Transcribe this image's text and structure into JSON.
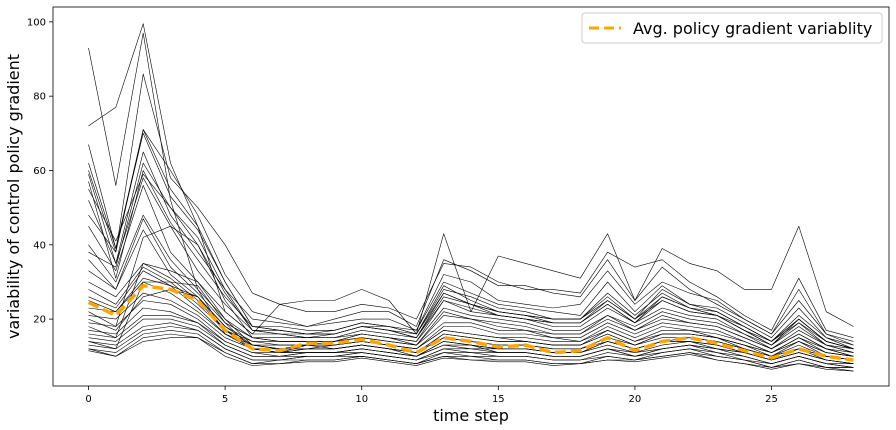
{
  "chart_data": {
    "type": "line",
    "xlabel": "time step",
    "ylabel": "variability of control policy gradient",
    "xlim": [
      -1.3,
      29.3
    ],
    "ylim": [
      2,
      104
    ],
    "x_ticks": [
      0,
      5,
      10,
      15,
      20,
      25
    ],
    "y_ticks": [
      20,
      40,
      60,
      80,
      100
    ],
    "grid": false,
    "legend_position": "top-right",
    "colors": {
      "individual": "#000000",
      "average": "#ffa500"
    },
    "x": [
      0,
      1,
      2,
      3,
      4,
      5,
      6,
      7,
      8,
      9,
      10,
      11,
      12,
      13,
      14,
      15,
      16,
      17,
      18,
      19,
      20,
      21,
      22,
      23,
      24,
      25,
      26,
      27,
      28
    ],
    "series": [
      {
        "name": "Avg. policy gradient variablity",
        "color": "#ffa500",
        "style": "dashed",
        "values": [
          24.5,
          21,
          29,
          28,
          25,
          17,
          12,
          11.5,
          13.5,
          13.5,
          14.5,
          13,
          11,
          15,
          14,
          12.5,
          13,
          11,
          11.5,
          15,
          11.5,
          14,
          15,
          13.5,
          11.5,
          9.5,
          12,
          10,
          9
        ]
      },
      {
        "values": [
          93,
          56,
          97,
          52,
          28,
          16,
          12,
          11,
          13,
          12,
          13,
          12,
          10,
          13,
          13,
          11,
          11,
          10,
          10,
          12,
          10,
          12,
          13,
          12,
          11,
          9,
          11,
          9,
          8
        ]
      },
      {
        "values": [
          72,
          77,
          99.5,
          62,
          45,
          22,
          16,
          24,
          25,
          25,
          28,
          25,
          16,
          43,
          22,
          37,
          35,
          33,
          31,
          43,
          25,
          39,
          35,
          33,
          28,
          28,
          45,
          22,
          18
        ]
      },
      {
        "values": [
          60,
          38,
          86,
          58,
          50,
          40,
          27,
          24,
          22,
          22,
          24,
          23,
          20,
          35,
          34,
          30,
          28,
          28,
          27,
          38,
          34,
          36,
          30,
          26,
          21,
          17,
          31,
          17,
          15
        ]
      },
      {
        "values": [
          67,
          39,
          71,
          60,
          48,
          32,
          22,
          20,
          18,
          20,
          22,
          22,
          18,
          36,
          33,
          29,
          29,
          27,
          26,
          36,
          25,
          34,
          28,
          24,
          20,
          16,
          28,
          16,
          14
        ]
      },
      {
        "values": [
          59,
          35,
          65,
          48,
          38,
          28,
          20,
          19,
          18,
          19,
          20,
          20,
          17,
          32,
          30,
          25,
          24,
          23,
          24,
          33,
          24,
          30,
          27,
          25,
          20,
          16,
          25,
          16,
          13
        ]
      },
      {
        "values": [
          57,
          31,
          60,
          46,
          36,
          26,
          18,
          18,
          17,
          17,
          19,
          18,
          17,
          30,
          27,
          24,
          23,
          22,
          21,
          30,
          22,
          29,
          24,
          23,
          19,
          15,
          23,
          15,
          13
        ]
      },
      {
        "values": [
          52,
          35,
          58,
          45,
          33,
          24,
          17,
          17,
          16,
          16,
          18,
          17,
          16,
          28,
          26,
          23,
          22,
          20,
          20,
          27,
          21,
          27,
          23,
          22,
          18,
          14,
          20,
          14,
          12
        ]
      },
      {
        "values": [
          45,
          33,
          56,
          38,
          30,
          22,
          16,
          16,
          15,
          15,
          17,
          16,
          15,
          26,
          24,
          22,
          21,
          19,
          19,
          25,
          20,
          25,
          22,
          21,
          17,
          13,
          19,
          13,
          12
        ]
      },
      {
        "values": [
          40,
          30,
          48,
          36,
          28,
          20,
          15,
          15,
          15,
          15,
          16,
          15,
          14,
          25,
          22,
          21,
          20,
          18,
          18,
          23,
          19,
          23,
          21,
          20,
          16,
          13,
          18,
          13,
          11
        ]
      },
      {
        "values": [
          36,
          28,
          47,
          34,
          27,
          19,
          15,
          14,
          14,
          14,
          16,
          15,
          14,
          23,
          21,
          20,
          19,
          17,
          17,
          21,
          18,
          22,
          20,
          19,
          16,
          12,
          17,
          13,
          11
        ]
      },
      {
        "values": [
          33,
          28,
          44,
          32,
          26,
          18,
          14,
          14,
          14,
          14,
          15,
          14,
          13,
          21,
          20,
          19,
          18,
          16,
          16,
          20,
          17,
          20,
          19,
          18,
          15,
          12,
          16,
          12,
          11
        ]
      },
      {
        "values": [
          30,
          26,
          35,
          31,
          25,
          17,
          14,
          13,
          13,
          14,
          15,
          14,
          13,
          19,
          19,
          17,
          17,
          15,
          15,
          19,
          16,
          19,
          18,
          17,
          14,
          11,
          15,
          12,
          10
        ]
      },
      {
        "values": [
          28,
          24,
          34,
          30,
          24,
          17,
          13,
          13,
          13,
          13,
          14,
          13,
          12,
          18,
          18,
          16,
          16,
          15,
          14,
          18,
          15,
          18,
          17,
          16,
          14,
          11,
          15,
          11,
          10
        ]
      },
      {
        "values": [
          26,
          23,
          33,
          29,
          23,
          16,
          13,
          12,
          13,
          13,
          14,
          13,
          12,
          17,
          16,
          15,
          15,
          14,
          14,
          17,
          14,
          17,
          17,
          15,
          13,
          11,
          14,
          11,
          10
        ]
      },
      {
        "values": [
          23,
          22,
          30,
          27,
          22,
          16,
          12,
          12,
          12,
          12,
          13,
          12,
          11,
          16,
          15,
          14,
          14,
          13,
          13,
          16,
          13,
          16,
          16,
          15,
          12,
          10,
          13,
          10,
          9
        ]
      },
      {
        "values": [
          21,
          20,
          27,
          25,
          21,
          15,
          12,
          11,
          12,
          12,
          13,
          12,
          11,
          15,
          14,
          13,
          13,
          12,
          12,
          15,
          13,
          15,
          15,
          14,
          12,
          10,
          12,
          10,
          9
        ]
      },
      {
        "values": [
          19,
          18,
          25,
          24,
          20,
          14,
          11,
          11,
          11,
          11,
          12,
          11,
          10,
          14,
          13,
          12,
          12,
          11,
          11,
          14,
          12,
          14,
          14,
          13,
          11,
          9,
          11,
          9,
          8
        ]
      },
      {
        "values": [
          17,
          16,
          23,
          22,
          19,
          14,
          11,
          10,
          11,
          11,
          12,
          11,
          10,
          13,
          12,
          12,
          12,
          11,
          11,
          13,
          11,
          13,
          14,
          12,
          11,
          9,
          11,
          9,
          8
        ]
      },
      {
        "values": [
          16,
          15,
          21,
          21,
          19,
          13,
          10,
          10,
          11,
          11,
          11,
          10,
          9,
          12,
          12,
          11,
          11,
          10,
          10,
          12,
          11,
          12,
          13,
          12,
          10,
          8,
          10,
          8,
          8
        ]
      },
      {
        "values": [
          15,
          14,
          20,
          20,
          18,
          13,
          10,
          10,
          10,
          10,
          11,
          10,
          9,
          12,
          11,
          11,
          11,
          10,
          10,
          12,
          10,
          12,
          13,
          11,
          10,
          8,
          10,
          8,
          7
        ]
      },
      {
        "values": [
          14,
          13,
          18,
          19,
          17,
          12,
          9,
          9,
          10,
          10,
          11,
          10,
          9,
          11,
          11,
          10,
          10,
          9,
          9,
          11,
          10,
          11,
          12,
          11,
          9,
          8,
          10,
          8,
          7
        ]
      },
      {
        "values": [
          13,
          12,
          17,
          18,
          17,
          12,
          9,
          9,
          10,
          10,
          10,
          9,
          8,
          11,
          10,
          10,
          10,
          9,
          9,
          10,
          9,
          11,
          12,
          10,
          9,
          7,
          9,
          7,
          7
        ]
      },
      {
        "values": [
          12,
          11,
          16,
          17,
          16,
          11,
          8,
          9,
          9,
          9,
          10,
          9,
          8,
          10,
          10,
          9,
          9,
          8,
          8,
          10,
          9,
          10,
          11,
          10,
          9,
          7,
          9,
          7,
          7
        ]
      },
      {
        "values": [
          12,
          10,
          15,
          16,
          15,
          11,
          8,
          8,
          9,
          9,
          10,
          9,
          8,
          10,
          9,
          9,
          9,
          8,
          8,
          9,
          9,
          10,
          11,
          9,
          8,
          7,
          8,
          7,
          6
        ]
      },
      {
        "values": [
          11.5,
          10,
          14,
          15,
          15,
          10,
          7.5,
          8,
          8.5,
          8.5,
          9.5,
          8.5,
          7.5,
          9.5,
          9,
          8.5,
          8.5,
          7.5,
          8,
          9,
          8.5,
          9.5,
          10.5,
          9,
          8,
          6.5,
          8,
          6.5,
          6
        ]
      },
      {
        "values": [
          48,
          38,
          71,
          55,
          45,
          30,
          18,
          17,
          16,
          17,
          19,
          18,
          16,
          29,
          25,
          22,
          21,
          20,
          20,
          26,
          20,
          28,
          24,
          22,
          18,
          14,
          21,
          15,
          12
        ]
      },
      {
        "values": [
          38,
          34,
          62,
          50,
          42,
          28,
          17,
          16,
          15,
          16,
          18,
          17,
          15,
          27,
          24,
          21,
          20,
          19,
          19,
          24,
          19,
          26,
          23,
          21,
          17,
          13,
          20,
          14,
          12
        ]
      },
      {
        "values": [
          22,
          18,
          42,
          45,
          40,
          25,
          15,
          14,
          14,
          14,
          16,
          15,
          13,
          22,
          20,
          18,
          17,
          16,
          16,
          21,
          17,
          21,
          19,
          18,
          15,
          12,
          16,
          12,
          10
        ]
      },
      {
        "values": [
          18,
          15,
          35,
          33,
          30,
          20,
          13,
          12,
          12,
          12,
          13,
          12,
          11,
          16,
          15,
          14,
          14,
          13,
          13,
          17,
          14,
          16,
          16,
          15,
          13,
          10,
          14,
          10,
          9
        ]
      },
      {
        "values": [
          14,
          12,
          30,
          30,
          29,
          19,
          12,
          11,
          11,
          11,
          12,
          11,
          10,
          14,
          13,
          12,
          12,
          11,
          11,
          14,
          12,
          14,
          14,
          13,
          11,
          9,
          12,
          9,
          8
        ]
      },
      {
        "values": [
          20,
          17,
          26,
          28,
          26,
          17,
          12,
          11,
          12,
          12,
          13,
          12,
          11,
          15,
          14,
          13,
          13,
          12,
          12,
          14,
          12,
          14,
          15,
          14,
          12,
          10,
          12,
          10,
          9
        ]
      },
      {
        "values": [
          25,
          22,
          31,
          29,
          26,
          18,
          13,
          12,
          12,
          13,
          14,
          13,
          12,
          17,
          16,
          15,
          14,
          13,
          13,
          16,
          13,
          16,
          16,
          15,
          13,
          11,
          14,
          11,
          10
        ]
      },
      {
        "values": [
          62,
          39,
          70,
          53,
          44,
          30,
          18,
          17,
          16,
          16,
          18,
          18,
          16,
          27,
          24,
          22,
          21,
          20,
          20,
          25,
          20,
          26,
          23,
          21,
          18,
          14,
          20,
          14,
          12
        ]
      },
      {
        "values": [
          55,
          41,
          59,
          50,
          40,
          27,
          17,
          16,
          16,
          16,
          18,
          17,
          15,
          25,
          23,
          21,
          20,
          19,
          19,
          24,
          19,
          25,
          22,
          21,
          17,
          14,
          19,
          14,
          12
        ]
      }
    ]
  }
}
